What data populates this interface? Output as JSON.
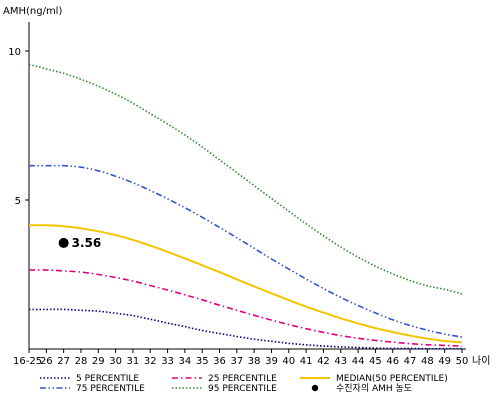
{
  "chart_data": {
    "type": "line",
    "ylabel": "AMH(ng/ml)",
    "xlabel": "나이",
    "categories": [
      "16-25",
      "26",
      "27",
      "28",
      "29",
      "30",
      "31",
      "32",
      "33",
      "34",
      "35",
      "36",
      "37",
      "38",
      "39",
      "40",
      "41",
      "42",
      "43",
      "44",
      "45",
      "46",
      "47",
      "48",
      "49",
      "50"
    ],
    "ylim": [
      0,
      11
    ],
    "yticks": [
      5,
      10
    ],
    "grid": false,
    "legend_position": "bottom",
    "series": [
      {
        "name": "5 PERCENTILE",
        "color": "#000080",
        "dash": "dotted",
        "values": [
          1.33,
          1.33,
          1.33,
          1.3,
          1.27,
          1.2,
          1.12,
          1.0,
          0.87,
          0.75,
          0.62,
          0.52,
          0.42,
          0.33,
          0.26,
          0.19,
          0.14,
          0.1,
          0.07,
          0.05,
          0.03,
          0.02,
          0.02,
          0.01,
          0.01,
          0.01
        ]
      },
      {
        "name": "25 PERCENTILE",
        "color": "#e0007f",
        "dash": "dashdot",
        "values": [
          2.65,
          2.65,
          2.62,
          2.58,
          2.5,
          2.4,
          2.28,
          2.13,
          1.98,
          1.82,
          1.65,
          1.47,
          1.3,
          1.13,
          0.97,
          0.82,
          0.68,
          0.56,
          0.45,
          0.36,
          0.29,
          0.23,
          0.18,
          0.14,
          0.12,
          0.1
        ]
      },
      {
        "name": "MEDIAN(50 PERCENTILE)",
        "color": "#f2c500",
        "dash": "solid",
        "values": [
          4.15,
          4.15,
          4.12,
          4.05,
          3.95,
          3.82,
          3.66,
          3.47,
          3.26,
          3.04,
          2.81,
          2.58,
          2.34,
          2.1,
          1.87,
          1.64,
          1.42,
          1.22,
          1.03,
          0.86,
          0.7,
          0.57,
          0.45,
          0.35,
          0.27,
          0.22
        ]
      },
      {
        "name": "75 PERCENTILE",
        "color": "#3355cc",
        "dash": "dashdotdot",
        "values": [
          6.15,
          6.15,
          6.15,
          6.1,
          5.98,
          5.8,
          5.58,
          5.32,
          5.04,
          4.74,
          4.42,
          4.08,
          3.73,
          3.38,
          3.02,
          2.68,
          2.35,
          2.03,
          1.73,
          1.46,
          1.21,
          0.98,
          0.79,
          0.63,
          0.5,
          0.4
        ]
      },
      {
        "name": "95 PERCENTILE",
        "color": "#2e8b2e",
        "dash": "dotted",
        "values": [
          9.55,
          9.4,
          9.25,
          9.05,
          8.82,
          8.55,
          8.25,
          7.9,
          7.55,
          7.18,
          6.78,
          6.35,
          5.92,
          5.48,
          5.05,
          4.62,
          4.2,
          3.8,
          3.42,
          3.08,
          2.78,
          2.52,
          2.3,
          2.12,
          2.0,
          1.85
        ]
      }
    ],
    "marker": {
      "name": "수진자의 AMH 농도",
      "category": "27",
      "value": 3.56,
      "label": "3.56",
      "color": "#000000"
    }
  }
}
